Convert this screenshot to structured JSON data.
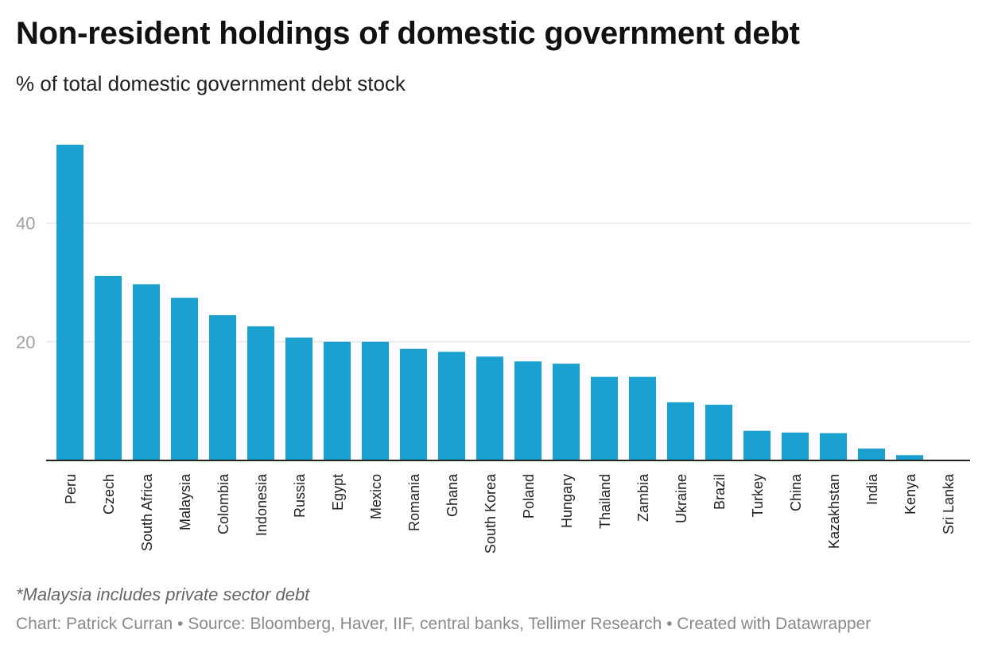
{
  "title": "Non-resident holdings of domestic government debt",
  "subtitle": "% of total domestic government debt stock",
  "note": "*Malaysia includes private sector debt",
  "credit": "Chart: Patrick Curran • Source: Bloomberg, Haver, IIF, central banks, Tellimer Research • Created with Datawrapper",
  "colors": {
    "bar": "#1aa1cf",
    "grid": "#dddddd",
    "axis": "#222222",
    "tick": "#a0a0a0"
  },
  "chart_data": {
    "type": "bar",
    "categories": [
      "Peru",
      "Czech",
      "South Africa",
      "Malaysia",
      "Colombia",
      "Indonesia",
      "Russia",
      "Egypt",
      "Mexico",
      "Romania",
      "Ghana",
      "South Korea",
      "Poland",
      "Hungary",
      "Thailand",
      "Zambia",
      "Ukraine",
      "Brazil",
      "Turkey",
      "China",
      "Kazakhstan",
      "India",
      "Kenya",
      "Sri Lanka"
    ],
    "values": [
      53.2,
      31.1,
      29.7,
      27.4,
      24.5,
      22.6,
      20.7,
      20.0,
      20.0,
      18.8,
      18.3,
      17.5,
      16.7,
      16.3,
      14.1,
      14.1,
      9.8,
      9.4,
      5.0,
      4.7,
      4.6,
      2.0,
      0.9,
      0.0
    ],
    "yticks": [
      20,
      40
    ],
    "ylim": [
      0,
      53.2
    ],
    "grid": true,
    "legend": "none"
  }
}
